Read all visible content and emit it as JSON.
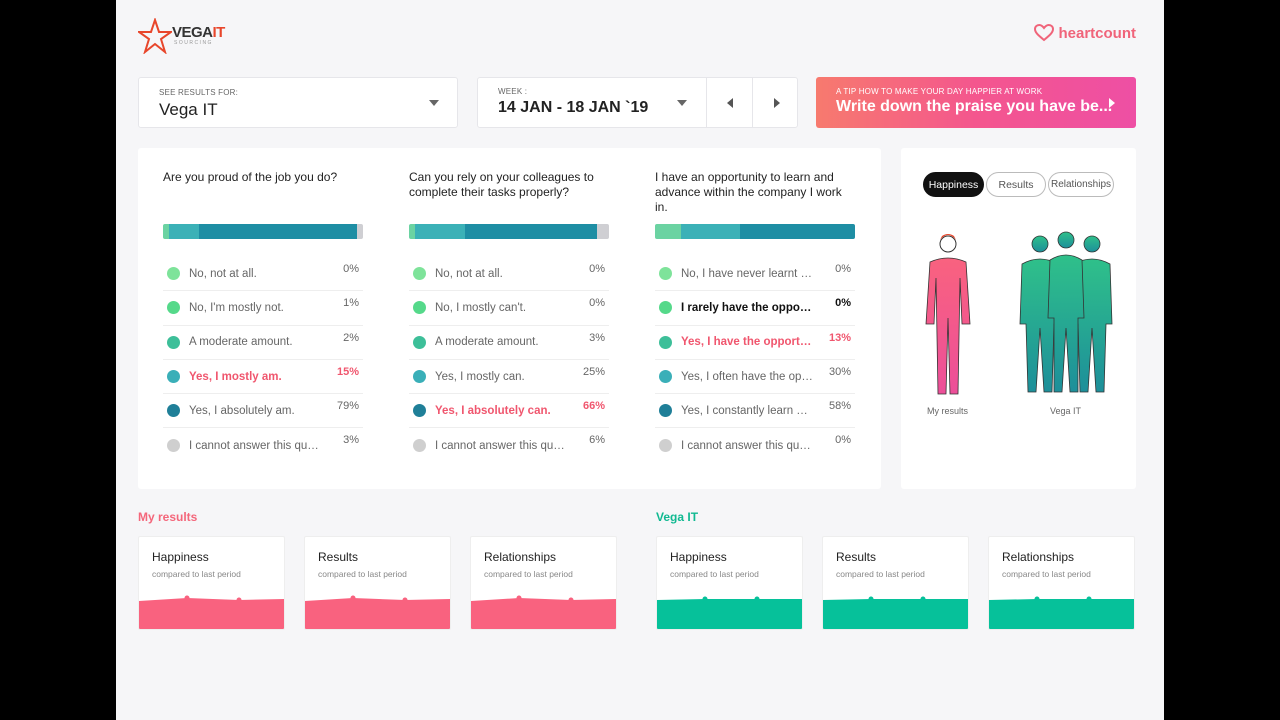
{
  "brand": {
    "name_main": "VEGA",
    "name_accent": "IT",
    "sub": "SOURCING",
    "partner": "heartcount"
  },
  "colors": {
    "pink": "#f9627f",
    "teal": "#06c19a",
    "accent_red": "#e8462b"
  },
  "filter": {
    "label": "SEE RESULTS FOR:",
    "value": "Vega IT"
  },
  "week": {
    "label": "WEEK :",
    "value": "14 JAN - 18 JAN `19"
  },
  "tip": {
    "label": "A TIP HOW TO MAKE YOUR DAY HAPPIER AT WORK",
    "text": "Write down the praise you have be..."
  },
  "questions": [
    {
      "title": "Are you proud of the job you do?",
      "bar": [
        3,
        15,
        79,
        3
      ],
      "answers": [
        {
          "label": "No, not at all.",
          "pct": "0%",
          "style": ""
        },
        {
          "label": "No, I'm mostly not.",
          "pct": "1%",
          "style": ""
        },
        {
          "label": "A moderate amount.",
          "pct": "2%",
          "style": ""
        },
        {
          "label": "Yes, I mostly am.",
          "pct": "15%",
          "style": "hl"
        },
        {
          "label": "Yes, I absolutely am.",
          "pct": "79%",
          "style": ""
        },
        {
          "label": "I cannot answer this que...",
          "pct": "3%",
          "style": ""
        }
      ]
    },
    {
      "title": "Can you rely on your colleagues to complete their tasks properly?",
      "bar": [
        3,
        25,
        66,
        6
      ],
      "answers": [
        {
          "label": "No, not at all.",
          "pct": "0%",
          "style": ""
        },
        {
          "label": "No, I mostly can't.",
          "pct": "0%",
          "style": ""
        },
        {
          "label": "A moderate amount.",
          "pct": "3%",
          "style": ""
        },
        {
          "label": "Yes, I mostly can.",
          "pct": "25%",
          "style": ""
        },
        {
          "label": "Yes, I absolutely can.",
          "pct": "66%",
          "style": "hl"
        },
        {
          "label": "I cannot answer this que...",
          "pct": "6%",
          "style": ""
        }
      ]
    },
    {
      "title": "I have an opportunity to learn and advance within the company I work in.",
      "bar": [
        13,
        30,
        58,
        0
      ],
      "answers": [
        {
          "label": "No, I have never learnt an...",
          "pct": "0%",
          "style": ""
        },
        {
          "label": "I rarely have the opportu...",
          "pct": "0%",
          "style": "bold"
        },
        {
          "label": "Yes, I have the opportuni...",
          "pct": "13%",
          "style": "hl"
        },
        {
          "label": "Yes, I often have the opp...",
          "pct": "30%",
          "style": ""
        },
        {
          "label": "Yes, I constantly learn an...",
          "pct": "58%",
          "style": ""
        },
        {
          "label": "I cannot answer this que...",
          "pct": "0%",
          "style": ""
        }
      ]
    }
  ],
  "dot_colors": [
    "#7ee39a",
    "#55d98a",
    "#3dbf99",
    "#3aafb8",
    "#1f7f98",
    "#cfcfcf"
  ],
  "toggles": {
    "happiness": "Happiness",
    "results": "Results",
    "relationships": "Relationships"
  },
  "figures": {
    "mine": "My results",
    "company": "Vega IT"
  },
  "my_results": {
    "title": "My results",
    "cards": [
      {
        "title": "Happiness",
        "sub": "compared to last period"
      },
      {
        "title": "Results",
        "sub": "compared to last period"
      },
      {
        "title": "Relationships",
        "sub": "compared to last period"
      }
    ]
  },
  "company_results": {
    "title": "Vega IT",
    "cards": [
      {
        "title": "Happiness",
        "sub": "compared to last period"
      },
      {
        "title": "Results",
        "sub": "compared to last period"
      },
      {
        "title": "Relationships",
        "sub": "compared to last period"
      }
    ]
  }
}
